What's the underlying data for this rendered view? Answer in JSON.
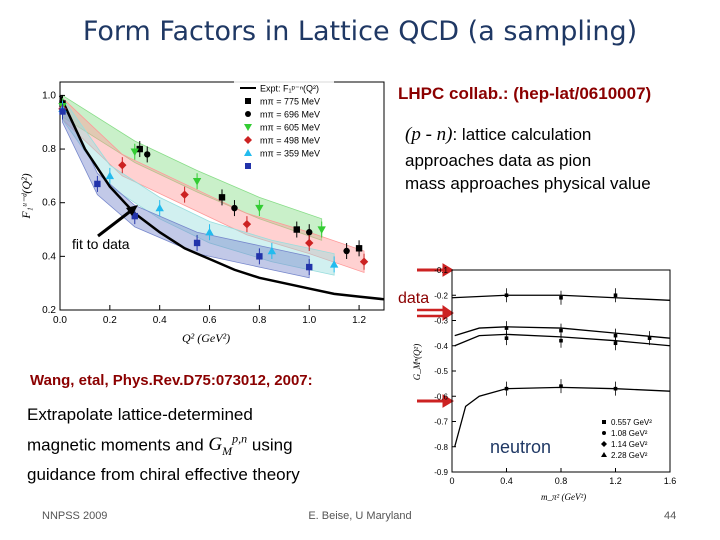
{
  "slide": {
    "title": "Form Factors in Lattice QCD (a sampling)",
    "lhpc": "LHPC collab.: (hep-lat/0610007)",
    "pn_symbol": "(p - n)",
    "pn_text": ": lattice calculation",
    "pn_line2": "approaches data as pion",
    "pn_line3": "mass approaches physical value",
    "fit_label": "fit to data",
    "data_label": "data",
    "wang": "Wang, etal, Phys.Rev.D75:073012, 2007:",
    "extrap_line1": "Extrapolate lattice-determined",
    "extrap_line2a": "magnetic moments and ",
    "extrap_gm": "G",
    "extrap_sub": "M",
    "extrap_sup": "p,n",
    "extrap_line2b": " using",
    "extrap_line3": "guidance from chiral effective theory",
    "neutron": "neutron",
    "footer_left": "NNPSS 2009",
    "footer_center": "E. Beise, U Maryland",
    "footer_right": "44"
  },
  "chart_data": [
    {
      "type": "scatter",
      "xlabel": "Q² (GeV²)",
      "ylabel": "F₁ᵘ⁻ᵈ(Q²)",
      "xlim": [
        0,
        1.3
      ],
      "ylim": [
        0.2,
        1.05
      ],
      "xticks": [
        "0.0",
        "0.2",
        "0.4",
        "0.6",
        "0.8",
        "1.0",
        "1.2"
      ],
      "yticks": [
        "0.2",
        "0.4",
        "0.6",
        "0.8",
        "1.0"
      ],
      "legend_position": "top-right",
      "legend": [
        {
          "label": "Expt: F₁ᵖ⁻ⁿ(Q²)",
          "color": "#000000",
          "marker": "line"
        },
        {
          "label": "mπ = 775 MeV",
          "color": "#000000",
          "marker": "square"
        },
        {
          "label": "mπ = 696 MeV",
          "color": "#000000",
          "marker": "circle"
        },
        {
          "label": "mπ = 605 MeV",
          "color": "#33cc33",
          "marker": "triangle-down"
        },
        {
          "label": "mπ = 498 MeV",
          "color": "#cc2222",
          "marker": "diamond"
        },
        {
          "label": "mπ = 359 MeV",
          "color": "#22bbee",
          "marker": "triangle-up"
        },
        {
          "label": "",
          "color": "#2233aa",
          "marker": "square"
        }
      ],
      "expt_curve": [
        [
          0.0,
          1.0
        ],
        [
          0.1,
          0.8
        ],
        [
          0.2,
          0.66
        ],
        [
          0.3,
          0.56
        ],
        [
          0.4,
          0.49
        ],
        [
          0.5,
          0.43
        ],
        [
          0.6,
          0.39
        ],
        [
          0.7,
          0.35
        ],
        [
          0.8,
          0.32
        ],
        [
          0.9,
          0.3
        ],
        [
          1.0,
          0.28
        ],
        [
          1.1,
          0.26
        ],
        [
          1.2,
          0.25
        ],
        [
          1.3,
          0.24
        ]
      ],
      "series": [
        {
          "name": "775 MeV",
          "color": "#000000",
          "marker": "square",
          "points": [
            [
              0.01,
              0.97
            ],
            [
              0.32,
              0.8
            ],
            [
              0.65,
              0.62
            ],
            [
              0.95,
              0.5
            ],
            [
              1.2,
              0.43
            ]
          ]
        },
        {
          "name": "696 MeV",
          "color": "#000000",
          "marker": "circle",
          "points": [
            [
              0.01,
              0.97
            ],
            [
              0.35,
              0.78
            ],
            [
              0.7,
              0.58
            ],
            [
              1.0,
              0.49
            ],
            [
              1.15,
              0.42
            ]
          ]
        },
        {
          "name": "605 MeV",
          "color": "#33cc33",
          "marker": "triangle-down",
          "points": [
            [
              0.01,
              0.96
            ],
            [
              0.3,
              0.79
            ],
            [
              0.55,
              0.68
            ],
            [
              0.8,
              0.58
            ],
            [
              1.05,
              0.5
            ]
          ]
        },
        {
          "name": "498 MeV",
          "color": "#cc2222",
          "marker": "diamond",
          "points": [
            [
              0.01,
              0.95
            ],
            [
              0.25,
              0.74
            ],
            [
              0.5,
              0.63
            ],
            [
              0.75,
              0.52
            ],
            [
              1.0,
              0.45
            ],
            [
              1.22,
              0.38
            ]
          ]
        },
        {
          "name": "359 MeV",
          "color": "#22bbee",
          "marker": "triangle-up",
          "points": [
            [
              0.01,
              0.95
            ],
            [
              0.2,
              0.7
            ],
            [
              0.4,
              0.58
            ],
            [
              0.6,
              0.49
            ],
            [
              0.85,
              0.42
            ],
            [
              1.1,
              0.37
            ]
          ]
        },
        {
          "name": "",
          "color": "#2233aa",
          "marker": "square",
          "points": [
            [
              0.01,
              0.94
            ],
            [
              0.15,
              0.67
            ],
            [
              0.3,
              0.55
            ],
            [
              0.55,
              0.45
            ],
            [
              0.8,
              0.4
            ],
            [
              1.0,
              0.36
            ]
          ]
        }
      ]
    },
    {
      "type": "scatter",
      "xlabel": "m_π² (GeV²)",
      "ylabel": "G_Mⁿ(Q²)",
      "xlim": [
        0,
        1.6
      ],
      "ylim": [
        -0.9,
        -0.1
      ],
      "xticks": [
        "0",
        "0.4",
        "0.8",
        "1.2",
        "1.6"
      ],
      "yticks": [
        "-0.1",
        "-0.2",
        "-0.3",
        "-0.4",
        "-0.5",
        "-0.6",
        "-0.7",
        "-0.8",
        "-0.9"
      ],
      "legend_position": "bottom-right",
      "legend": [
        {
          "label": "0.557 GeV²",
          "color": "#000000",
          "marker": "square"
        },
        {
          "label": "1.08 GeV²",
          "color": "#000000",
          "marker": "circle"
        },
        {
          "label": "1.14 GeV²",
          "color": "#000000",
          "marker": "diamond"
        },
        {
          "label": "2.28 GeV²",
          "color": "#000000",
          "marker": "triangle"
        }
      ],
      "curves": [
        [
          [
            0.0,
            -0.21
          ],
          [
            0.4,
            -0.2
          ],
          [
            0.8,
            -0.2
          ],
          [
            1.2,
            -0.21
          ],
          [
            1.6,
            -0.22
          ]
        ],
        [
          [
            0.02,
            -0.36
          ],
          [
            0.2,
            -0.33
          ],
          [
            0.4,
            -0.325
          ],
          [
            0.8,
            -0.33
          ],
          [
            1.2,
            -0.35
          ],
          [
            1.6,
            -0.37
          ]
        ],
        [
          [
            0.02,
            -0.4
          ],
          [
            0.2,
            -0.36
          ],
          [
            0.4,
            -0.355
          ],
          [
            0.8,
            -0.365
          ],
          [
            1.2,
            -0.38
          ],
          [
            1.6,
            -0.4
          ]
        ],
        [
          [
            0.02,
            -0.8
          ],
          [
            0.1,
            -0.64
          ],
          [
            0.2,
            -0.6
          ],
          [
            0.4,
            -0.57
          ],
          [
            0.8,
            -0.565
          ],
          [
            1.2,
            -0.57
          ],
          [
            1.6,
            -0.58
          ]
        ]
      ],
      "points": [
        [
          0.4,
          -0.2
        ],
        [
          0.8,
          -0.21
        ],
        [
          1.2,
          -0.2
        ],
        [
          0.4,
          -0.33
        ],
        [
          0.8,
          -0.34
        ],
        [
          1.2,
          -0.36
        ],
        [
          1.45,
          -0.37
        ],
        [
          0.4,
          -0.37
        ],
        [
          0.8,
          -0.38
        ],
        [
          1.2,
          -0.39
        ],
        [
          0.4,
          -0.57
        ],
        [
          0.8,
          -0.56
        ],
        [
          1.2,
          -0.57
        ]
      ]
    }
  ]
}
